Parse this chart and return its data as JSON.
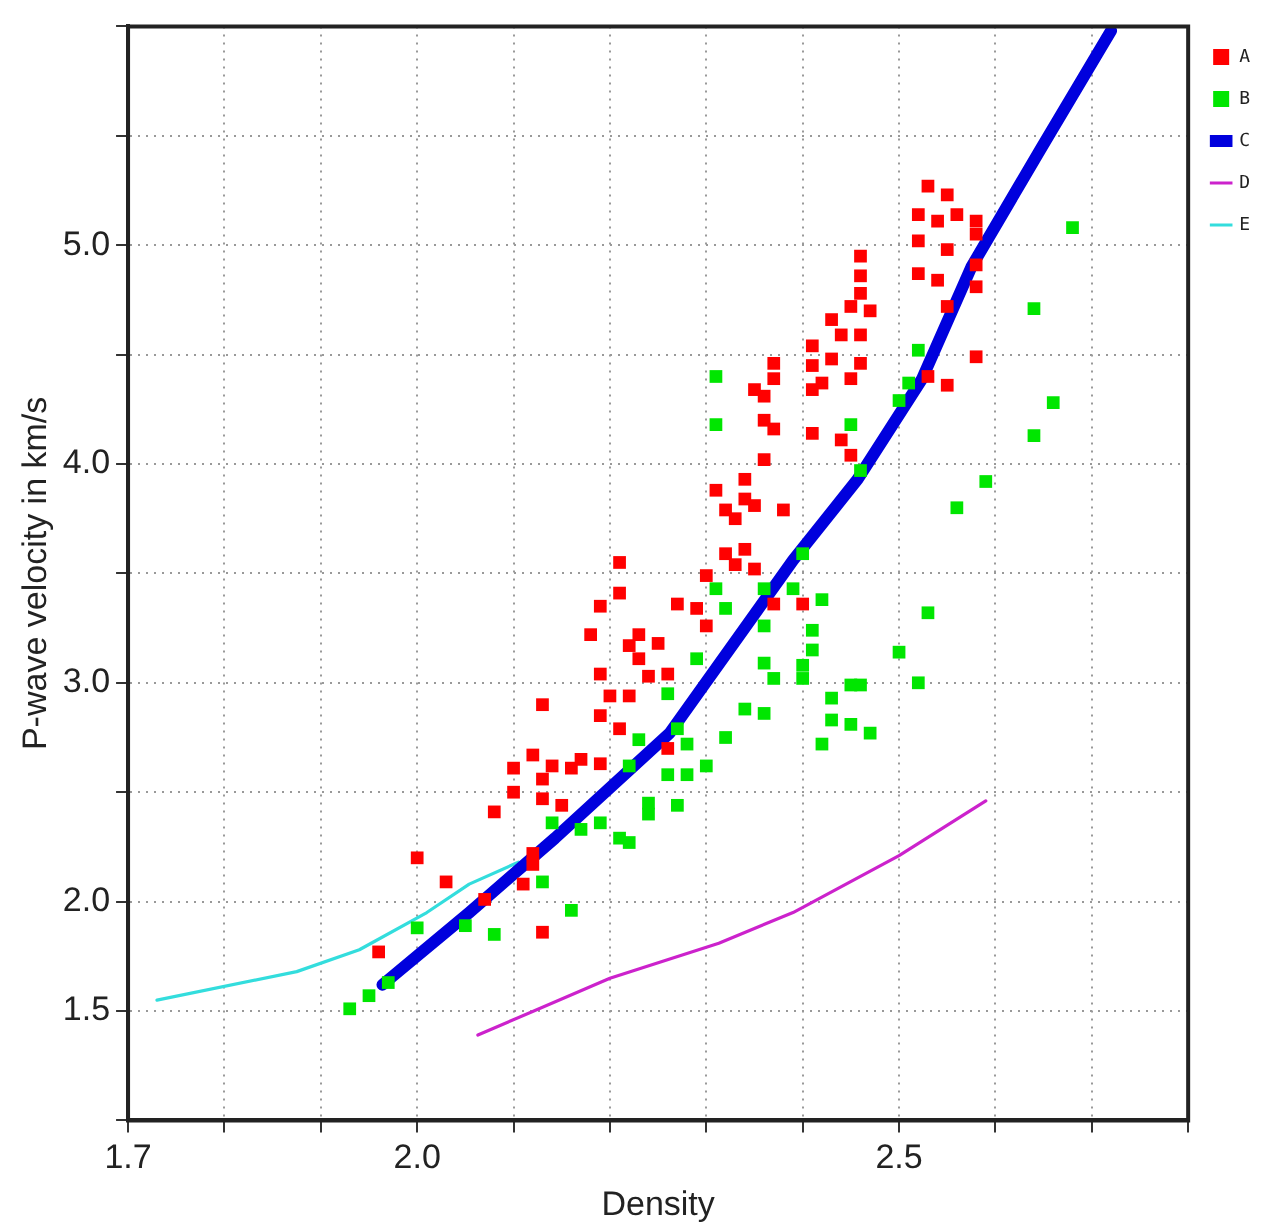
{
  "chart_data": {
    "type": "scatter",
    "xlabel": "Density",
    "ylabel": "P-wave velocity in km/s",
    "xlim": [
      1.7,
      2.8
    ],
    "ylim": [
      1,
      6
    ],
    "xticks": [
      1.7,
      {
        "value": 1.8,
        "label": null
      },
      {
        "value": 1.9,
        "label": null
      },
      {
        "value": 2,
        "label": "2.0"
      },
      {
        "value": 2.1,
        "label": null
      },
      {
        "value": 2.2,
        "label": null
      },
      {
        "value": 2.3,
        "label": null
      },
      {
        "value": 2.4,
        "label": null
      },
      2.5,
      {
        "value": 2.6,
        "label": null
      },
      {
        "value": 2.7,
        "label": null
      },
      {
        "value": 2.8,
        "label": null
      }
    ],
    "yticks": [
      {
        "value": 1,
        "label": null
      },
      1.5,
      {
        "value": 2,
        "label": "2.0"
      },
      {
        "value": 2.5,
        "label": null
      },
      {
        "value": 3,
        "label": "3.0"
      },
      {
        "value": 3.5,
        "label": null
      },
      {
        "value": 4,
        "label": "4.0"
      },
      {
        "value": 4.5,
        "label": null
      },
      {
        "value": 5,
        "label": "5.0"
      },
      {
        "value": 5.5,
        "label": null
      },
      {
        "value": 6,
        "label": null
      }
    ],
    "grid": true,
    "legend": "right",
    "series": [
      {
        "name": "A",
        "marker": "square",
        "color": "#ff0000",
        "x": [
          2.53,
          2.55,
          2.52,
          2.54,
          2.56,
          2.58,
          2.52,
          2.55,
          2.58,
          2.58,
          2.52,
          2.54,
          2.58,
          2.55,
          2.53,
          2.55,
          2.58,
          2.46,
          2.46,
          2.46,
          2.45,
          2.47,
          2.43,
          2.44,
          2.46,
          2.41,
          2.43,
          2.41,
          2.46,
          2.45,
          2.42,
          2.41,
          2.41,
          2.44,
          2.45,
          2.37,
          2.37,
          2.36,
          2.35,
          2.36,
          2.37,
          2.36,
          2.31,
          2.34,
          2.34,
          2.32,
          2.35,
          2.38,
          2.33,
          2.32,
          2.34,
          2.33,
          2.35,
          2.3,
          2.21,
          2.21,
          2.19,
          2.27,
          2.29,
          2.37,
          2.4,
          2.3,
          2.18,
          2.22,
          2.23,
          2.25,
          2.23,
          2.24,
          2.26,
          2.19,
          2.2,
          2.22,
          2.19,
          2.21,
          2.13,
          2.26,
          2.12,
          2.14,
          2.16,
          2.17,
          2.19,
          2.1,
          2.13,
          2.1,
          2.13,
          2.15,
          2.08,
          2.12,
          2.12,
          2.11,
          2.0,
          2.03,
          2.07,
          2.13,
          1.96
        ],
        "values": [
          5.27,
          5.23,
          5.14,
          5.11,
          5.14,
          5.11,
          5.02,
          4.98,
          5.05,
          4.91,
          4.87,
          4.84,
          4.81,
          4.72,
          4.4,
          4.36,
          4.49,
          4.95,
          4.86,
          4.78,
          4.72,
          4.7,
          4.66,
          4.59,
          4.59,
          4.54,
          4.48,
          4.45,
          4.46,
          4.39,
          4.37,
          4.34,
          4.14,
          4.11,
          4.04,
          4.46,
          4.39,
          4.31,
          4.34,
          4.2,
          4.16,
          4.02,
          3.88,
          3.93,
          3.84,
          3.79,
          3.81,
          3.79,
          3.75,
          3.59,
          3.61,
          3.54,
          3.52,
          3.49,
          3.55,
          3.41,
          3.35,
          3.36,
          3.34,
          3.36,
          3.36,
          3.26,
          3.22,
          3.17,
          3.22,
          3.18,
          3.11,
          3.03,
          3.04,
          3.04,
          2.94,
          2.94,
          2.85,
          2.79,
          2.9,
          2.7,
          2.67,
          2.62,
          2.61,
          2.65,
          2.63,
          2.61,
          2.56,
          2.5,
          2.47,
          2.44,
          2.41,
          2.22,
          2.17,
          2.08,
          2.2,
          2.09,
          2.01,
          1.86,
          1.77
        ]
      },
      {
        "name": "B",
        "marker": "square",
        "color": "#00e600",
        "x": [
          2.31,
          2.31,
          2.45,
          2.46,
          2.52,
          2.5,
          2.51,
          2.64,
          2.68,
          2.66,
          2.64,
          2.59,
          2.56,
          2.4,
          2.31,
          2.32,
          2.36,
          2.39,
          2.42,
          2.36,
          2.41,
          2.41,
          2.53,
          2.29,
          2.26,
          2.27,
          2.28,
          2.36,
          2.37,
          2.4,
          2.4,
          2.34,
          2.36,
          2.43,
          2.45,
          2.46,
          2.5,
          2.52,
          2.43,
          2.45,
          2.47,
          2.42,
          2.32,
          2.26,
          2.28,
          2.3,
          2.27,
          2.24,
          2.24,
          2.22,
          2.23,
          2.14,
          2.17,
          2.19,
          2.21,
          2.22,
          2.13,
          2.16,
          2.08,
          2.05,
          2.0,
          1.97,
          1.95,
          1.93
        ],
        "values": [
          4.4,
          4.18,
          4.18,
          3.97,
          4.52,
          4.29,
          4.37,
          4.71,
          5.08,
          4.28,
          4.13,
          3.92,
          3.8,
          3.59,
          3.43,
          3.34,
          3.43,
          3.43,
          3.38,
          3.26,
          3.24,
          3.15,
          3.32,
          3.11,
          2.95,
          2.79,
          2.72,
          3.09,
          3.02,
          3.08,
          3.02,
          2.88,
          2.86,
          2.93,
          2.99,
          2.99,
          3.14,
          3.0,
          2.83,
          2.81,
          2.77,
          2.72,
          2.75,
          2.58,
          2.58,
          2.62,
          2.44,
          2.45,
          2.4,
          2.62,
          2.74,
          2.36,
          2.33,
          2.36,
          2.29,
          2.27,
          2.09,
          1.96,
          1.85,
          1.89,
          1.88,
          1.63,
          1.57,
          1.51
        ]
      },
      {
        "name": "C",
        "type": "line",
        "marker": "none",
        "color": "#0000dd",
        "x": [
          1.964,
          2.054,
          2.143,
          2.262,
          2.39,
          2.457,
          2.524,
          2.575,
          2.647,
          2.72
        ],
        "values": [
          1.62,
          1.95,
          2.29,
          2.77,
          3.56,
          3.93,
          4.39,
          4.9,
          5.44,
          5.98
        ]
      },
      {
        "name": "D",
        "type": "line",
        "marker": "none",
        "color": "#cc22cc",
        "x": [
          2.063,
          2.2,
          2.313,
          2.39,
          2.5,
          2.59
        ],
        "values": [
          1.39,
          1.65,
          1.81,
          1.95,
          2.21,
          2.46
        ]
      },
      {
        "name": "E",
        "type": "line",
        "marker": "none",
        "color": "#33dddd",
        "x": [
          1.73,
          1.875,
          1.94,
          2.01,
          2.054,
          2.105
        ],
        "values": [
          1.55,
          1.68,
          1.78,
          1.95,
          2.08,
          2.18
        ]
      }
    ]
  }
}
